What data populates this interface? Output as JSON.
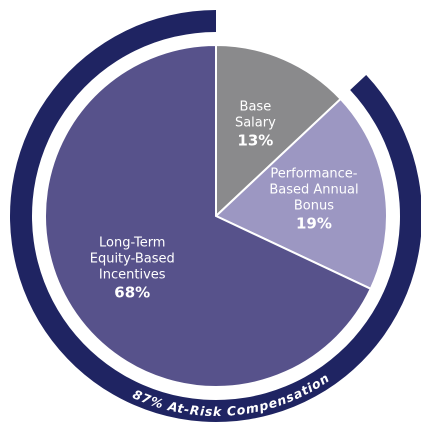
{
  "chart_data": {
    "type": "pie",
    "categories": [
      "Base\nSalary",
      "Performance-\nBased Annual\nBonus",
      "Long-Term\nEquity-Based\nIncentives"
    ],
    "values": [
      13,
      19,
      68
    ],
    "value_labels": [
      "13%",
      "19%",
      "68%"
    ],
    "colors": [
      "#8a8a8c",
      "#9c97c2",
      "#57528b"
    ],
    "ring": {
      "value": 87,
      "label": "87% At-Risk Compensation",
      "color": "#1f2462"
    }
  }
}
